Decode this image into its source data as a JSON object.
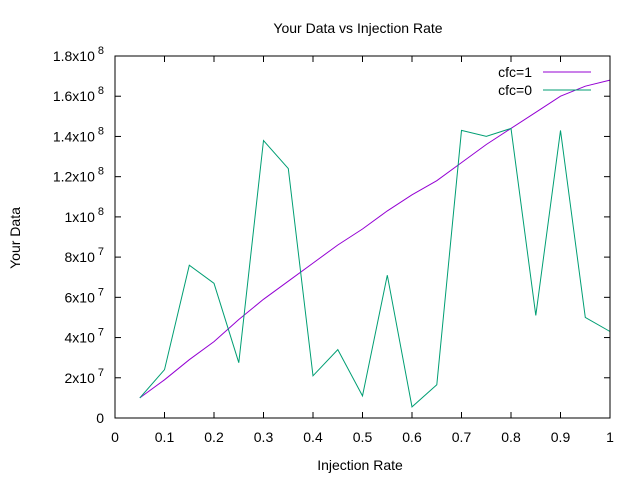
{
  "chart_data": {
    "type": "line",
    "title": "Your Data vs Injection Rate",
    "xlabel": "Injection Rate",
    "ylabel": "Your Data",
    "xlim": [
      0,
      1
    ],
    "ylim": [
      0,
      180000000
    ],
    "x_ticks": [
      {
        "value": 0,
        "label": "0"
      },
      {
        "value": 0.1,
        "label": "0.1"
      },
      {
        "value": 0.2,
        "label": "0.2"
      },
      {
        "value": 0.3,
        "label": "0.3"
      },
      {
        "value": 0.4,
        "label": "0.4"
      },
      {
        "value": 0.5,
        "label": "0.5"
      },
      {
        "value": 0.6,
        "label": "0.6"
      },
      {
        "value": 0.7,
        "label": "0.7"
      },
      {
        "value": 0.8,
        "label": "0.8"
      },
      {
        "value": 0.9,
        "label": "0.9"
      },
      {
        "value": 1,
        "label": "1"
      }
    ],
    "y_ticks": [
      {
        "value": 0,
        "mantissa": "0",
        "exp": ""
      },
      {
        "value": 20000000,
        "mantissa": "2x10",
        "exp": "7"
      },
      {
        "value": 40000000,
        "mantissa": "4x10",
        "exp": "7"
      },
      {
        "value": 60000000,
        "mantissa": "6x10",
        "exp": "7"
      },
      {
        "value": 80000000,
        "mantissa": "8x10",
        "exp": "7"
      },
      {
        "value": 100000000,
        "mantissa": "1x10",
        "exp": "8"
      },
      {
        "value": 120000000,
        "mantissa": "1.2x10",
        "exp": "8"
      },
      {
        "value": 140000000,
        "mantissa": "1.4x10",
        "exp": "8"
      },
      {
        "value": 160000000,
        "mantissa": "1.6x10",
        "exp": "8"
      },
      {
        "value": 180000000,
        "mantissa": "1.8x10",
        "exp": "8"
      }
    ],
    "grid": false,
    "legend_position": "top-right",
    "series": [
      {
        "name": "cfc=1",
        "color": "#9400d3",
        "x": [
          0.05,
          0.1,
          0.15,
          0.2,
          0.25,
          0.3,
          0.35,
          0.4,
          0.45,
          0.5,
          0.55,
          0.6,
          0.65,
          0.7,
          0.75,
          0.8,
          0.85,
          0.9,
          0.95,
          1.0
        ],
        "y": [
          10000000,
          19000000,
          29000000,
          38000000,
          49000000,
          59000000,
          68000000,
          77000000,
          86000000,
          94000000,
          103000000,
          111000000,
          118000000,
          127000000,
          136000000,
          144000000,
          152000000,
          160000000,
          165000000,
          168000000
        ]
      },
      {
        "name": "cfc=0",
        "color": "#009e73",
        "x": [
          0.05,
          0.1,
          0.15,
          0.2,
          0.25,
          0.3,
          0.35,
          0.4,
          0.45,
          0.5,
          0.55,
          0.6,
          0.65,
          0.7,
          0.75,
          0.8,
          0.85,
          0.9,
          0.95,
          1.0
        ],
        "y": [
          10000000,
          24000000,
          76000000,
          67000000,
          27500000,
          138000000,
          124000000,
          21000000,
          34000000,
          11000000,
          71000000,
          5500000,
          16500000,
          143000000,
          140000000,
          144000000,
          51000000,
          143000000,
          50000000,
          43000000
        ]
      }
    ]
  }
}
